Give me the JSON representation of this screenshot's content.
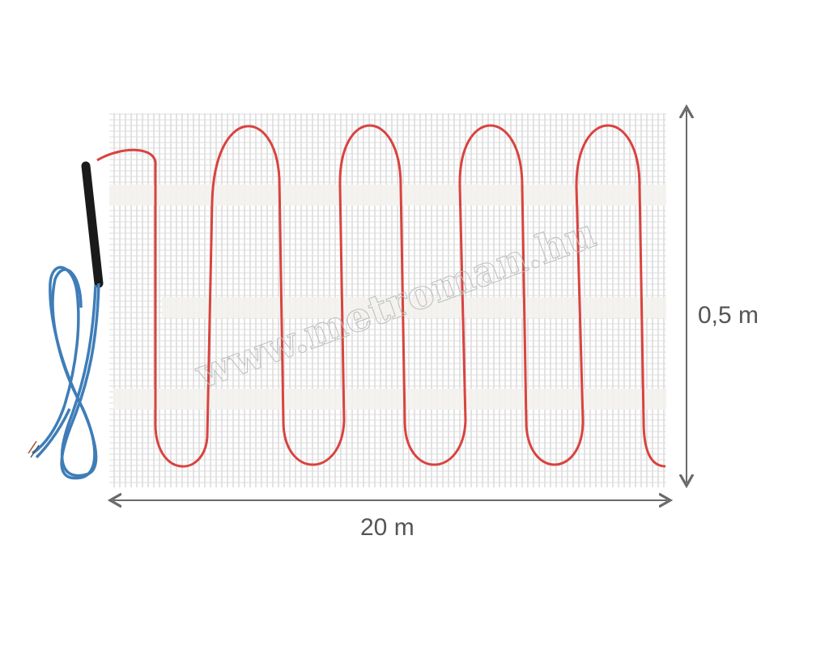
{
  "product": {
    "width_label": "20 m",
    "height_label": "0,5 m",
    "watermark": "www.metroman.hu"
  },
  "colors": {
    "heating_cable": "#d9433f",
    "supply_cable": "#3f7db8",
    "cold_lead": "#1a1a1a",
    "mesh": "#d8d8d8",
    "dimension_arrows": "#6a6a6a"
  }
}
